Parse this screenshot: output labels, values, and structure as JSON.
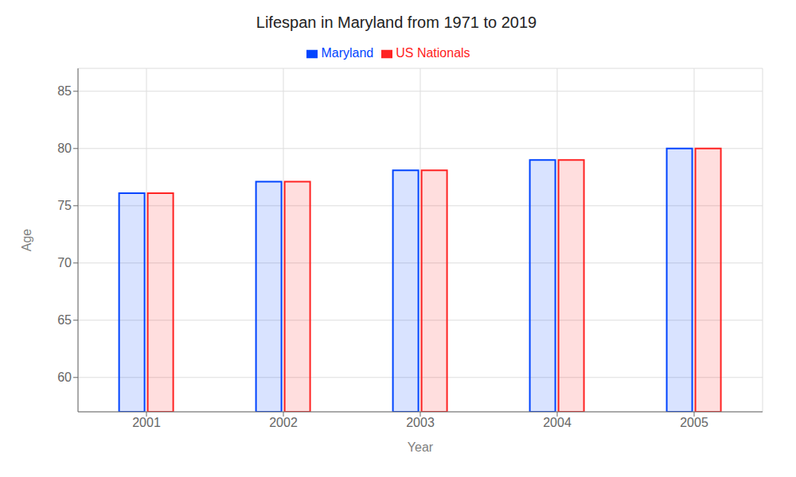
{
  "chart_data": {
    "type": "bar",
    "title": "Lifespan in Maryland from 1971 to 2019",
    "x_label": "Year",
    "y_label": "Age",
    "categories": [
      "2001",
      "2002",
      "2003",
      "2004",
      "2005"
    ],
    "series": [
      {
        "name": "Maryland",
        "color": "#0044ff",
        "values": [
          76.1,
          77.1,
          78.1,
          79.0,
          80.0
        ]
      },
      {
        "name": "US Nationals",
        "color": "#ff2222",
        "values": [
          76.1,
          77.1,
          78.1,
          79.0,
          80.0
        ]
      }
    ],
    "ylim": [
      57,
      87
    ],
    "yticks": [
      60,
      65,
      70,
      75,
      80,
      85
    ],
    "grid": true,
    "legend": "top"
  }
}
